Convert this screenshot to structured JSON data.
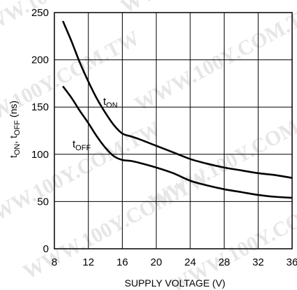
{
  "chart_data": {
    "type": "line",
    "title": "",
    "xlabel": "SUPPLY VOLTAGE (V)",
    "ylabel": {
      "main": "t",
      "sub1": "ON",
      "sep": ", t",
      "sub2": "OFF",
      "unit": " (ns)"
    },
    "xlim": [
      8,
      36
    ],
    "ylim": [
      0,
      250
    ],
    "xticks": [
      "8",
      "12",
      "16",
      "20",
      "24",
      "28",
      "32",
      "36"
    ],
    "yticks": [
      "0",
      "50",
      "100",
      "150",
      "200",
      "250"
    ],
    "grid": true,
    "legend": "none",
    "series": [
      {
        "name": "tON",
        "label_main": "t",
        "label_sub": "ON",
        "x": [
          9,
          10,
          11,
          12,
          13,
          14,
          15,
          16,
          17,
          18,
          20,
          22,
          24,
          26,
          28,
          30,
          32,
          34,
          36
        ],
        "y": [
          241,
          220,
          197,
          177,
          159,
          144,
          131,
          122,
          119,
          116,
          109,
          102,
          95,
          90,
          86,
          83,
          80,
          78,
          75
        ]
      },
      {
        "name": "tOFF",
        "label_main": "t",
        "label_sub": "OFF",
        "x": [
          9,
          10,
          11,
          12,
          13,
          14,
          15,
          16,
          17,
          18,
          20,
          22,
          24,
          26,
          28,
          30,
          32,
          34,
          36
        ],
        "y": [
          172,
          160,
          146,
          133,
          119,
          107,
          98,
          94,
          93,
          91,
          86,
          80,
          72,
          67,
          63,
          60,
          57,
          55,
          54
        ]
      }
    ]
  },
  "watermark": "WWW.100Y.COM.TW"
}
